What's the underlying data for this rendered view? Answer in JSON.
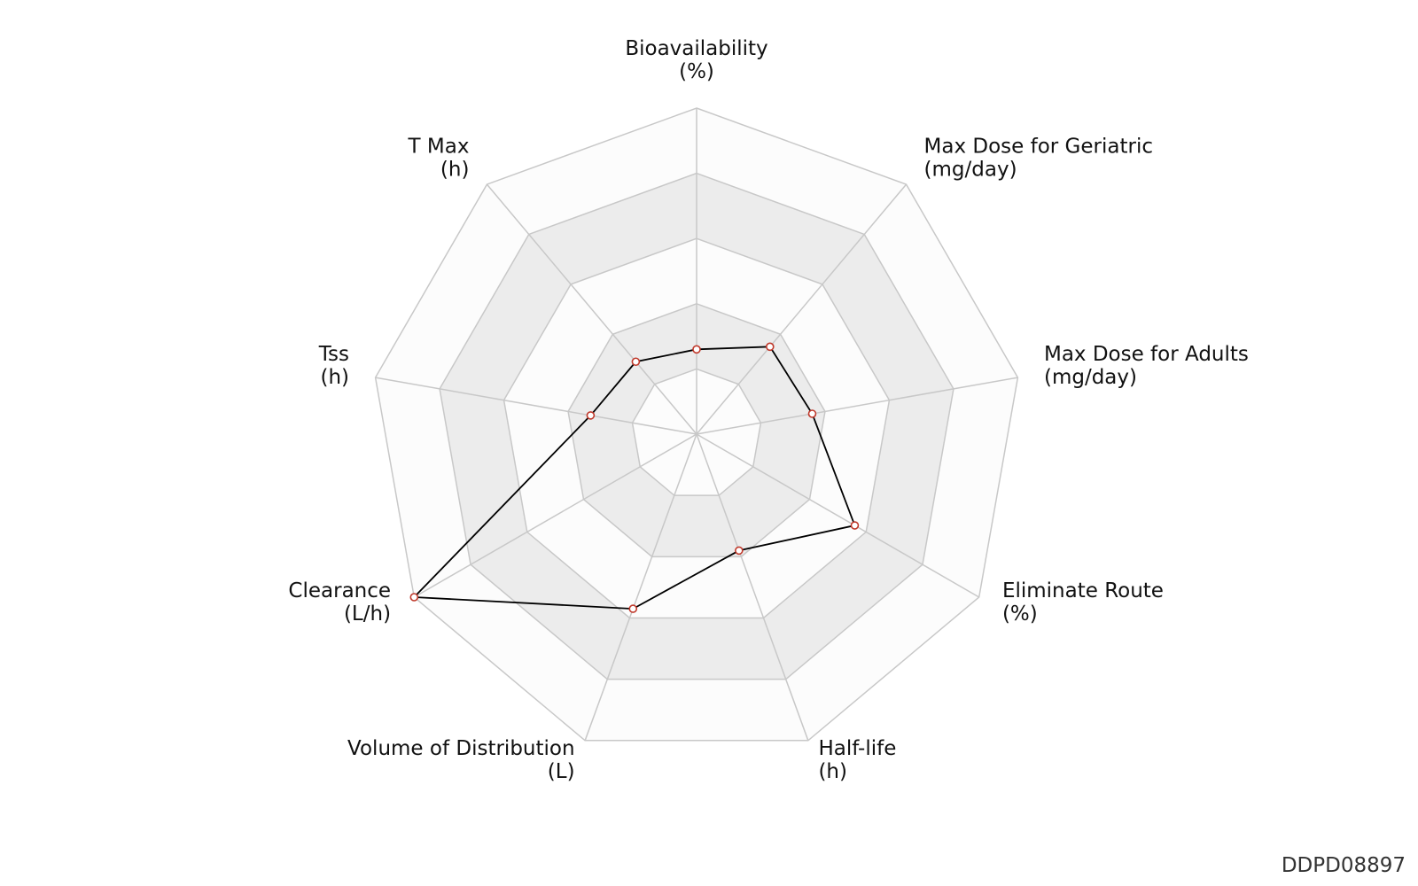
{
  "chart_data": {
    "type": "radar",
    "axes": [
      {
        "name": "Bioavailability",
        "unit": "(%)"
      },
      {
        "name": "Max Dose for Geriatric",
        "unit": "(mg/day)"
      },
      {
        "name": "Max Dose for Adults",
        "unit": "(mg/day)"
      },
      {
        "name": "Eliminate Route",
        "unit": "(%)"
      },
      {
        "name": "Half-life",
        "unit": "(h)"
      },
      {
        "name": "Volume of Distribution",
        "unit": "(L)"
      },
      {
        "name": "Clearance",
        "unit": "(L/h)"
      },
      {
        "name": "Tss",
        "unit": "(h)"
      },
      {
        "name": "T Max",
        "unit": "(h)"
      }
    ],
    "series": [
      {
        "values": [
          0.26,
          0.35,
          0.36,
          0.56,
          0.38,
          0.57,
          1.0,
          0.33,
          0.29
        ]
      }
    ],
    "range": [
      0,
      1
    ],
    "rings": 5,
    "grid": true,
    "colors": {
      "band_light": "#fcfcfc",
      "band_dark": "#ececec",
      "grid_line": "#c8c8c8",
      "series_line": "#000000",
      "marker_stroke": "#c0392b",
      "marker_fill": "#ffffff"
    }
  },
  "watermark": "DDPD08897"
}
